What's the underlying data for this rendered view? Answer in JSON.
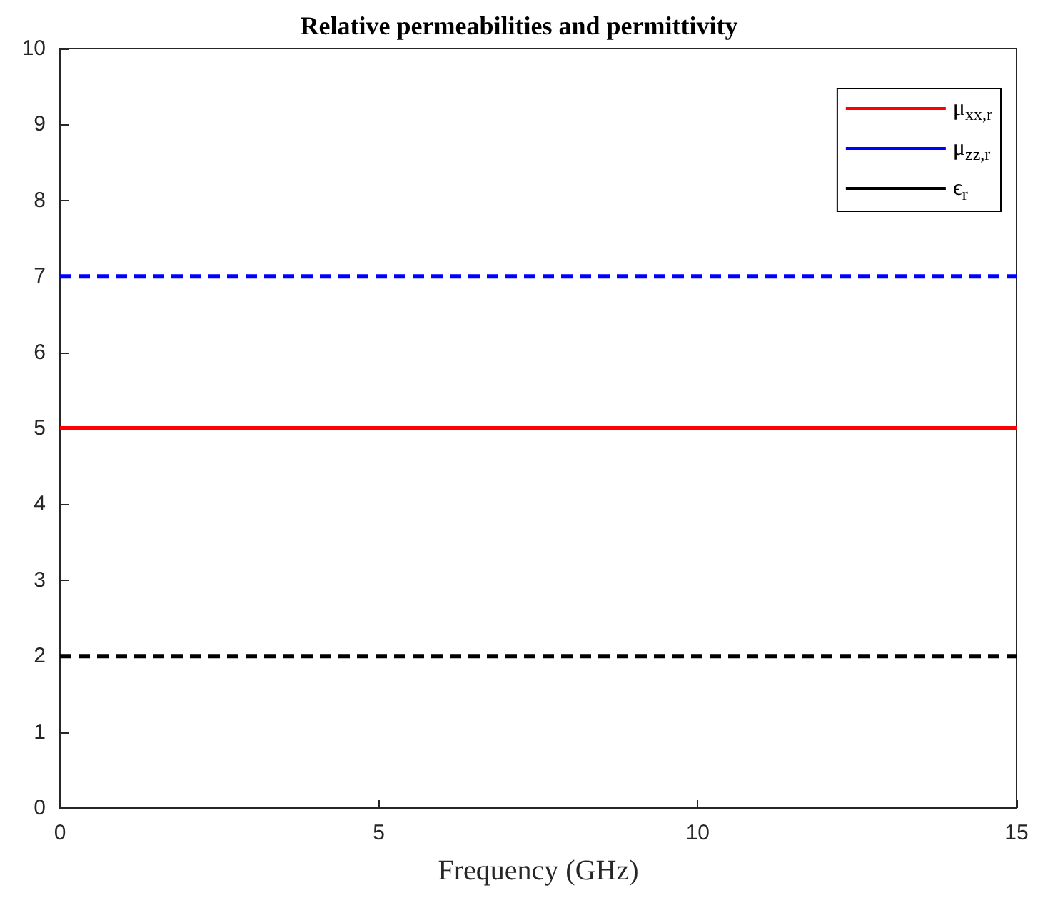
{
  "chart_data": {
    "type": "line",
    "title": "Relative permeabilities and permittivity",
    "xlabel": "Frequency (GHz)",
    "x": [
      0,
      15
    ],
    "series": [
      {
        "name": "μ$_{xx,r}$",
        "color": "#ff0000",
        "values": [
          5,
          5
        ],
        "line_style": "solid"
      },
      {
        "name": "μ$_{zz,r}$",
        "color": "#0000ff",
        "values": [
          7,
          7
        ],
        "line_style": "dashed"
      },
      {
        "name": "ϵ$_{r}$",
        "color": "#000000",
        "values": [
          2,
          2
        ],
        "line_style": "dashed"
      }
    ],
    "xlim": [
      0,
      15
    ],
    "xticks": [
      0,
      5,
      10,
      15
    ],
    "ylim": [
      0,
      10
    ],
    "yticks": [
      0,
      1,
      2,
      3,
      4,
      5,
      6,
      7,
      8,
      9,
      10
    ],
    "grid": false,
    "legend": "top right",
    "marker": "none"
  }
}
